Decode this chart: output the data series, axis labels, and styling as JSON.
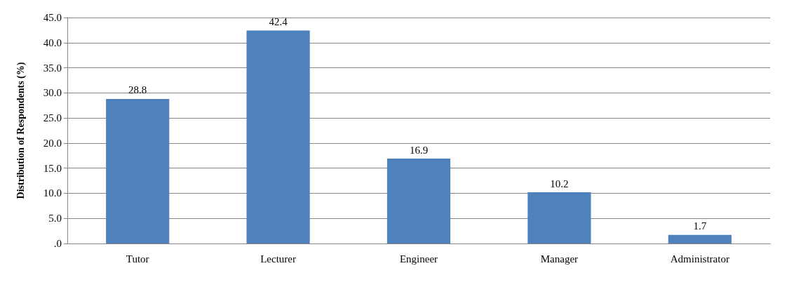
{
  "chart_data": {
    "type": "bar",
    "ylabel": "Distribution of Respondents (%)",
    "categories": [
      "Tutor",
      "Lecturer",
      "Engineer",
      "Manager",
      "Administrator"
    ],
    "values": [
      28.8,
      42.4,
      16.9,
      10.2,
      1.7
    ],
    "color": "#4f81bd",
    "ylim": [
      0,
      45
    ],
    "yticks": [
      {
        "value": 0,
        "label": ".0"
      },
      {
        "value": 5,
        "label": "5.0"
      },
      {
        "value": 10,
        "label": "10.0"
      },
      {
        "value": 15,
        "label": "15.0"
      },
      {
        "value": 20,
        "label": "20.0"
      },
      {
        "value": 25,
        "label": "25.0"
      },
      {
        "value": 30,
        "label": "30.0"
      },
      {
        "value": 35,
        "label": "35.0"
      },
      {
        "value": 40,
        "label": "40.0"
      },
      {
        "value": 45,
        "label": "45.0"
      }
    ],
    "grid": true,
    "data_labels": true
  }
}
